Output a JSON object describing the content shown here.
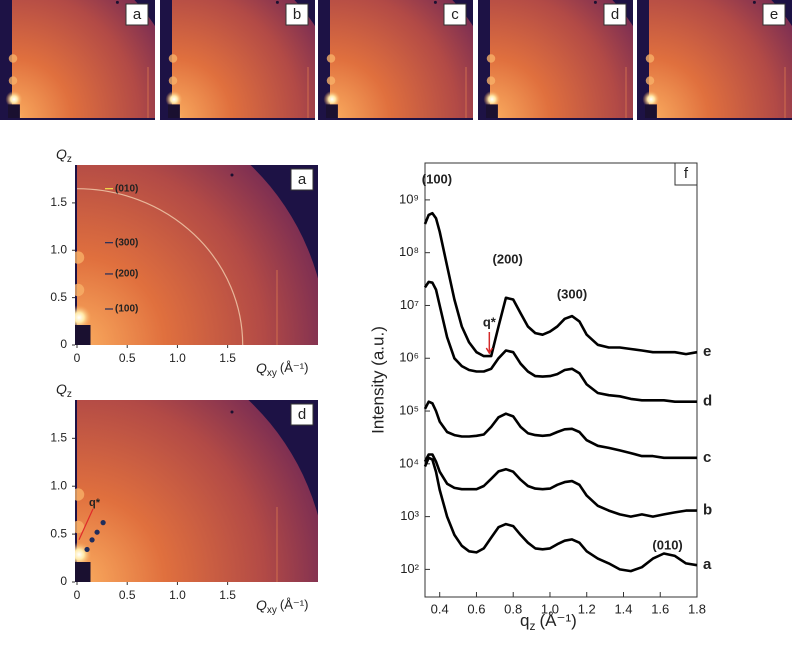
{
  "top_panels": {
    "labels": [
      "a",
      "b",
      "c",
      "d",
      "e"
    ]
  },
  "maps": [
    {
      "label": "a",
      "y_symbol": "Q",
      "y_subscript": "z",
      "x_symbol": "Q",
      "x_subscript": "xy",
      "x_unit": "(Å⁻¹)",
      "xlim": [
        -0.02,
        2.4
      ],
      "ylim": [
        0,
        1.9
      ],
      "xticks": [
        0,
        0.5,
        {
          "value": 1,
          "label": "1.0"
        },
        1.5
      ],
      "yticks": [
        0,
        0.5,
        {
          "value": 1,
          "label": "1.0"
        },
        1.5
      ],
      "annotations": [
        "(010)",
        "(300)",
        "(200)",
        "(100)"
      ]
    },
    {
      "label": "d",
      "y_symbol": "Q",
      "y_subscript": "z",
      "x_symbol": "Q",
      "x_subscript": "xy",
      "x_unit": "(Å⁻¹)",
      "xlim": [
        -0.02,
        2.4
      ],
      "ylim": [
        0,
        1.9
      ],
      "xticks": [
        0,
        0.5,
        {
          "value": 1,
          "label": "1.0"
        },
        1.5
      ],
      "yticks": [
        0,
        0.5,
        {
          "value": 1,
          "label": "1.0"
        },
        1.5
      ],
      "annotations": [
        "q*"
      ]
    }
  ],
  "chart_data": {
    "type": "line",
    "title": "f",
    "y_label": "Intensity (a.u.)",
    "x_label": {
      "symbol": "q",
      "subscript": "z",
      "unit": "(Å⁻¹)"
    },
    "log_y": true,
    "xlim": [
      0.32,
      1.8
    ],
    "ylim": [
      30,
      5000000000
    ],
    "xticks": [
      0.4,
      0.6,
      0.8,
      {
        "value": 1,
        "label": "1.0"
      },
      1.2,
      1.4,
      1.6,
      1.8
    ],
    "yticks": [
      {
        "value": 100,
        "label": "10²"
      },
      {
        "value": 1000,
        "label": "10³"
      },
      {
        "value": 10000,
        "label": "10⁴"
      },
      {
        "value": 100000,
        "label": "10⁵"
      },
      {
        "value": 1000000,
        "label": "10⁶"
      },
      {
        "value": 10000000,
        "label": "10⁷"
      },
      {
        "value": 100000000,
        "label": "10⁸"
      },
      {
        "value": 1000000000,
        "label": "10⁹"
      }
    ],
    "x": [
      0.32,
      0.34,
      0.36,
      0.38,
      0.4,
      0.44,
      0.48,
      0.52,
      0.56,
      0.6,
      0.64,
      0.68,
      0.72,
      0.76,
      0.8,
      0.84,
      0.88,
      0.92,
      0.96,
      1.0,
      1.04,
      1.08,
      1.12,
      1.16,
      1.2,
      1.26,
      1.32,
      1.38,
      1.44,
      1.5,
      1.56,
      1.62,
      1.68,
      1.74,
      1.8
    ],
    "series": [
      {
        "name": "e",
        "color": "#000000",
        "values": [
          350000000.0,
          520000000.0,
          560000000.0,
          450000000.0,
          250000000.0,
          56000000.0,
          13000000.0,
          4000000.0,
          2000000.0,
          1300000.0,
          1100000.0,
          1100000.0,
          4000000.0,
          14000000.0,
          13000000.0,
          7100000.0,
          4000000.0,
          3000000.0,
          2800000.0,
          3200000.0,
          4000000.0,
          5600000.0,
          6300000.0,
          5000000.0,
          2800000.0,
          1800000.0,
          1600000.0,
          1600000.0,
          1500000.0,
          1400000.0,
          1300000.0,
          1300000.0,
          1300000.0,
          1200000.0,
          1300000.0
        ]
      },
      {
        "name": "d",
        "color": "#000000",
        "values": [
          22000000.0,
          28000000.0,
          27000000.0,
          20000000.0,
          10000000.0,
          2500000.0,
          1000000.0,
          710000.0,
          600000.0,
          560000.0,
          560000.0,
          630000.0,
          1000000.0,
          1400000.0,
          1300000.0,
          790000.0,
          560000.0,
          460000.0,
          450000.0,
          460000.0,
          500000.0,
          600000.0,
          630000.0,
          520000.0,
          320000.0,
          220000.0,
          200000.0,
          190000.0,
          170000.0,
          160000.0,
          160000.0,
          160000.0,
          150000.0,
          150000.0,
          150000.0
        ]
      },
      {
        "name": "c",
        "color": "#000000",
        "values": [
          110000.0,
          150000.0,
          140000.0,
          100000.0,
          63000.0,
          40000.0,
          35000.0,
          33000.0,
          33000.0,
          34000.0,
          36000.0,
          50000.0,
          76000.0,
          89000.0,
          79000.0,
          50000.0,
          38000.0,
          35000.0,
          34000.0,
          35000.0,
          40000.0,
          45000.0,
          46000.0,
          40000.0,
          28000.0,
          22000.0,
          20000.0,
          18000.0,
          16000.0,
          14000.0,
          14000.0,
          13000.0,
          13000.0,
          13000.0,
          13000.0
        ]
      },
      {
        "name": "b",
        "color": "#000000",
        "values": [
          11000.0,
          15000.0,
          15000.0,
          11000.0,
          7100,
          4200,
          3500,
          3300,
          3300,
          3300,
          3800,
          5200,
          7200,
          7900,
          7100,
          5000,
          3800,
          3400,
          3300,
          3400,
          4000,
          4500,
          4700,
          4000,
          2500,
          1600,
          1300,
          1100,
          1000,
          1100,
          1000,
          1100,
          1200,
          1300,
          1300
        ]
      },
      {
        "name": "a",
        "color": "#000000",
        "values": [
          8900,
          13000.0,
          12000.0,
          7100,
          3200,
          1000,
          450,
          280,
          220,
          210,
          250,
          400,
          630,
          720,
          660,
          450,
          320,
          250,
          240,
          250,
          300,
          350,
          370,
          320,
          220,
          160,
          130,
          100,
          93,
          110,
          160,
          200,
          180,
          130,
          120
        ]
      }
    ],
    "annotations": [
      {
        "text": "(100)",
        "color": "#1f3864"
      },
      {
        "text": "(200)",
        "color": "#1f3864"
      },
      {
        "text": "(300)",
        "color": "#1f3864"
      },
      {
        "text": "(010)",
        "color": "#d42a2a"
      },
      {
        "text": "q*",
        "color": "#d42a2a"
      }
    ]
  }
}
